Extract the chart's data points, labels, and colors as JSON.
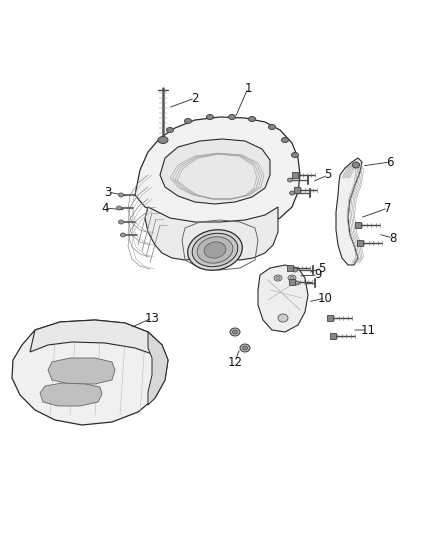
{
  "bg_color": "#ffffff",
  "fig_width": 4.38,
  "fig_height": 5.33,
  "dpi": 100,
  "line_color": "#2a2a2a",
  "light_gray": "#cccccc",
  "mid_gray": "#888888",
  "dark_gray": "#444444",
  "fill_light": "#f0f0f0",
  "fill_mid": "#e0e0e0",
  "fill_dark": "#c8c8c8",
  "label_fontsize": 8.5,
  "leader_lw": 0.6,
  "drawing_lw": 0.7
}
